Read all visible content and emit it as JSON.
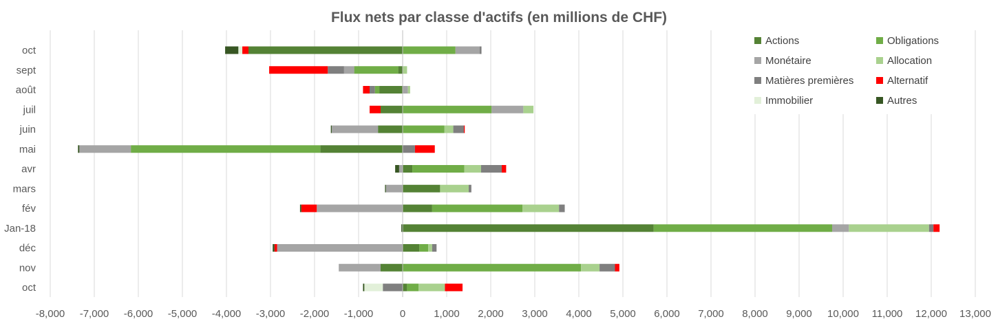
{
  "chart_data": {
    "type": "bar",
    "orientation": "horizontal",
    "stacked": true,
    "title": "Flux nets par classe d'actifs (en millions de CHF)",
    "xlabel": "",
    "ylabel": "",
    "xlim": [
      -8000,
      13000
    ],
    "x_ticks": [
      -8000,
      -7000,
      -6000,
      -5000,
      -4000,
      -3000,
      -2000,
      -1000,
      0,
      1000,
      2000,
      3000,
      4000,
      5000,
      6000,
      7000,
      8000,
      9000,
      10000,
      11000,
      12000,
      13000
    ],
    "x_tick_labels": [
      "-8,000",
      "-7,000",
      "-6,000",
      "-5,000",
      "-4,000",
      "-3,000",
      "-2,000",
      "-1,000",
      "0",
      "1,000",
      "2,000",
      "3,000",
      "4,000",
      "5,000",
      "6,000",
      "7,000",
      "8,000",
      "9,000",
      "10,000",
      "11,000",
      "12,000",
      "13,000"
    ],
    "grid": "vertical",
    "legend_position": "top-right",
    "categories": [
      "oct",
      "nov",
      "déc",
      "Jan-18",
      "fév",
      "mars",
      "avr",
      "mai",
      "juin",
      "juil",
      "août",
      "sept",
      "oct"
    ],
    "series": [
      {
        "name": "Actions",
        "color": "#548235",
        "values": [
          100,
          -500,
          380,
          5700,
          670,
          850,
          220,
          -1870,
          -560,
          -500,
          -530,
          -100,
          -3500
        ]
      },
      {
        "name": "Obligations",
        "color": "#70AD47",
        "values": [
          260,
          4050,
          200,
          4050,
          2050,
          0,
          1180,
          -4300,
          950,
          2020,
          -100,
          -1000,
          1200
        ]
      },
      {
        "name": "Monétaire",
        "color": "#A5A5A5",
        "values": [
          0,
          -950,
          -2850,
          380,
          -1950,
          -380,
          -80,
          -1170,
          -1050,
          720,
          120,
          -230,
          550
        ]
      },
      {
        "name": "Allocation",
        "color": "#A9D18E",
        "values": [
          600,
          420,
          90,
          1820,
          830,
          650,
          380,
          0,
          200,
          230,
          50,
          100,
          0
        ]
      },
      {
        "name": "Matières premières",
        "color": "#7F7F7F",
        "values": [
          -450,
          350,
          100,
          100,
          130,
          60,
          470,
          280,
          240,
          0,
          -120,
          -370,
          40
        ]
      },
      {
        "name": "Alternatif",
        "color": "#FF0000",
        "values": [
          400,
          100,
          -60,
          140,
          -350,
          0,
          100,
          450,
          20,
          -250,
          -150,
          -1330,
          -140
        ]
      },
      {
        "name": "Immobilier",
        "color": "#E2F0D9",
        "values": [
          -420,
          0,
          0,
          0,
          0,
          0,
          0,
          0,
          0,
          0,
          0,
          0,
          -90
        ]
      },
      {
        "name": "Autres",
        "color": "#375623",
        "values": [
          -30,
          0,
          -40,
          -30,
          -30,
          -20,
          -90,
          -30,
          -20,
          0,
          0,
          0,
          -300
        ]
      }
    ]
  }
}
